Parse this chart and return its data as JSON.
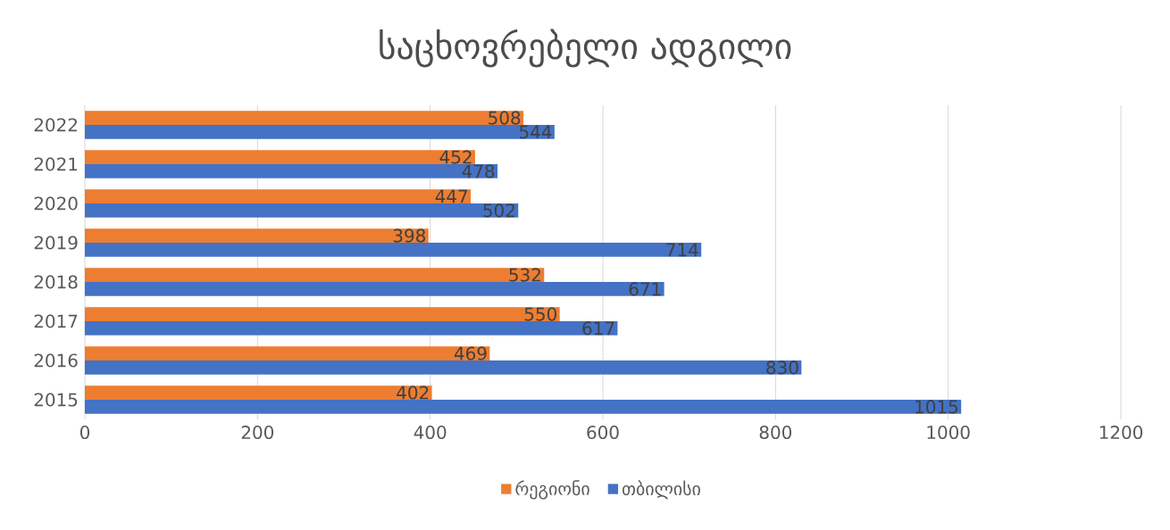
{
  "chart_data": {
    "type": "bar",
    "orientation": "horizontal",
    "title": "საცხოვრებელი ადგილი",
    "categories": [
      "2022",
      "2021",
      "2020",
      "2019",
      "2018",
      "2017",
      "2016",
      "2015"
    ],
    "series": [
      {
        "name": "რეგიონი",
        "color": "#ed7d31",
        "values": [
          508,
          452,
          447,
          398,
          532,
          550,
          469,
          402
        ]
      },
      {
        "name": "თბილისი",
        "color": "#4472c4",
        "values": [
          544,
          478,
          502,
          714,
          671,
          617,
          830,
          1015
        ]
      }
    ],
    "xlim": [
      0,
      1200
    ],
    "xticks": [
      0,
      200,
      400,
      600,
      800,
      1000,
      1200
    ],
    "grid": "x",
    "legend": "bottom",
    "data_labels": true
  }
}
